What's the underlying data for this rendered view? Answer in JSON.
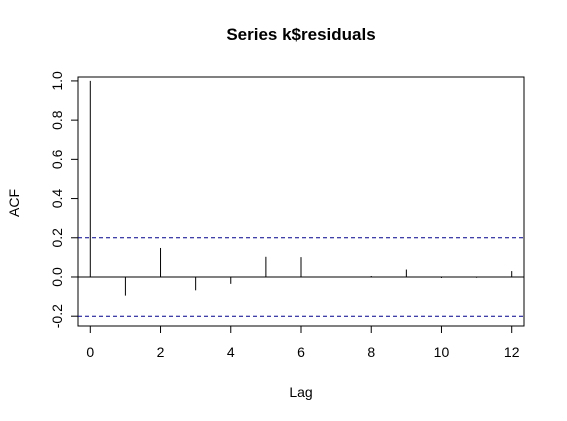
{
  "chart_data": {
    "type": "bar",
    "title": "Series  k$residuals",
    "xlabel": "Lag",
    "ylabel": "ACF",
    "xlim": [
      -0.35,
      12.35
    ],
    "ylim": [
      -0.25,
      1.02
    ],
    "x_ticks": [
      "0",
      "2",
      "4",
      "6",
      "8",
      "10",
      "12"
    ],
    "y_ticks": [
      "-0.2",
      "0.0",
      "0.2",
      "0.4",
      "0.6",
      "0.8",
      "1.0"
    ],
    "lags": [
      0,
      1,
      2,
      3,
      4,
      5,
      6,
      7,
      8,
      9,
      10,
      11,
      12
    ],
    "acf": [
      1.0,
      -0.095,
      0.148,
      -0.068,
      -0.035,
      0.103,
      0.101,
      0.0,
      0.005,
      0.038,
      -0.005,
      -0.004,
      0.03
    ],
    "confidence_bounds": [
      0.2,
      -0.2
    ],
    "bound_color": "#00008b",
    "line_color": "#000000"
  }
}
